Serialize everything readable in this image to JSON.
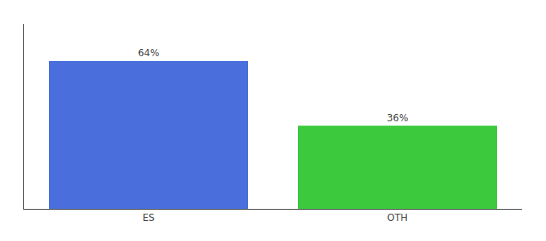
{
  "chart_data": {
    "type": "bar",
    "categories": [
      "ES",
      "OTH"
    ],
    "values": [
      64,
      36
    ],
    "colors": [
      "#4a6fdc",
      "#3dc93d"
    ],
    "data_labels": true,
    "value_labels": [
      "64%",
      "36%"
    ],
    "ylim": [
      0,
      80
    ],
    "grid": false,
    "tick_labels": "x"
  }
}
